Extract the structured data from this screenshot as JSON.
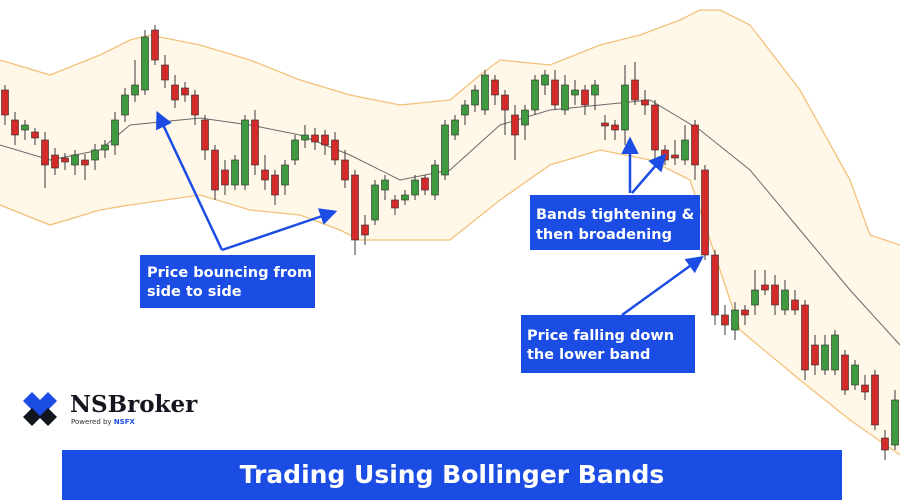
{
  "chart_data": {
    "type": "candlestick",
    "title": "Trading Using Bollinger Bands",
    "ylim": [
      0,
      500
    ],
    "up_color": "#3f9a3f",
    "down_color": "#d42a2a",
    "open": [
      410,
      380,
      370,
      368,
      360,
      345,
      342,
      335,
      340,
      340,
      350,
      355,
      385,
      405,
      410,
      470,
      435,
      415,
      412,
      405,
      380,
      350,
      330,
      315,
      315,
      380,
      330,
      325,
      315,
      340,
      360,
      365,
      365,
      360,
      340,
      325,
      275,
      280,
      310,
      300,
      300,
      305,
      322,
      305,
      325,
      365,
      385,
      395,
      390,
      420,
      405,
      385,
      375,
      390,
      415,
      420,
      390,
      405,
      410,
      405,
      377,
      375,
      370,
      420,
      400,
      395,
      350,
      345,
      340,
      375,
      330,
      245,
      185,
      170,
      190,
      195,
      215,
      215,
      190,
      200,
      195,
      155,
      130,
      130,
      145,
      115,
      115,
      125,
      62,
      55
    ],
    "high": [
      415,
      388,
      380,
      372,
      368,
      352,
      347,
      350,
      346,
      356,
      360,
      388,
      412,
      440,
      470,
      475,
      445,
      425,
      418,
      410,
      385,
      355,
      340,
      345,
      385,
      390,
      345,
      330,
      340,
      365,
      375,
      372,
      370,
      368,
      350,
      330,
      285,
      320,
      325,
      305,
      310,
      325,
      325,
      340,
      380,
      385,
      400,
      415,
      430,
      425,
      410,
      395,
      395,
      425,
      430,
      430,
      425,
      420,
      415,
      420,
      385,
      380,
      435,
      438,
      410,
      400,
      355,
      360,
      375,
      380,
      335,
      250,
      195,
      198,
      195,
      230,
      230,
      225,
      220,
      210,
      200,
      165,
      165,
      170,
      150,
      140,
      125,
      130,
      70,
      110
    ],
    "low": [
      375,
      355,
      360,
      355,
      312,
      325,
      330,
      325,
      320,
      330,
      342,
      345,
      378,
      398,
      405,
      435,
      412,
      392,
      398,
      375,
      340,
      300,
      305,
      310,
      310,
      325,
      310,
      295,
      305,
      335,
      352,
      350,
      345,
      335,
      312,
      245,
      255,
      275,
      300,
      285,
      295,
      300,
      305,
      300,
      320,
      360,
      375,
      388,
      385,
      395,
      365,
      340,
      360,
      385,
      405,
      390,
      385,
      395,
      385,
      390,
      360,
      360,
      355,
      395,
      385,
      340,
      335,
      335,
      335,
      320,
      240,
      175,
      165,
      160,
      175,
      185,
      205,
      185,
      185,
      185,
      120,
      125,
      125,
      125,
      105,
      110,
      100,
      70,
      40,
      50
    ],
    "close": [
      385,
      365,
      375,
      362,
      335,
      332,
      338,
      345,
      335,
      350,
      355,
      380,
      405,
      415,
      463,
      440,
      420,
      400,
      405,
      385,
      350,
      310,
      315,
      340,
      380,
      335,
      320,
      305,
      335,
      360,
      365,
      358,
      355,
      340,
      320,
      260,
      265,
      315,
      320,
      292,
      305,
      320,
      310,
      335,
      375,
      380,
      395,
      410,
      425,
      405,
      390,
      365,
      390,
      420,
      425,
      395,
      415,
      410,
      395,
      415,
      374,
      370,
      415,
      400,
      395,
      350,
      340,
      342,
      360,
      335,
      245,
      185,
      175,
      190,
      185,
      210,
      210,
      195,
      210,
      190,
      130,
      135,
      155,
      165,
      110,
      135,
      108,
      75,
      50,
      100
    ],
    "band_color": "#f3c27c",
    "band_fill": "#fff7e8",
    "middle_color": "#6b6b6b",
    "bands": {
      "upper": {
        "x": [
          -0.5,
          4.5,
          9.5,
          12.5,
          14.5,
          19.5,
          24.5,
          29.5,
          34.5,
          39.5,
          44.5,
          47.5,
          49.5,
          54.5,
          59.5,
          63.5,
          67.5,
          69.5,
          71.5,
          74.5,
          79.5,
          84.5,
          86.5,
          89.5
        ],
        "values": [
          440,
          425,
          445,
          460,
          465,
          455,
          440,
          420,
          405,
          395,
          400,
          425,
          440,
          435,
          455,
          465,
          480,
          490,
          490,
          475,
          410,
          320,
          265,
          255
        ]
      },
      "middle": {
        "x": [
          -0.5,
          4.5,
          9.5,
          12.5,
          19.5,
          24.5,
          29.5,
          34.5,
          39.5,
          44.5,
          49.5,
          54.5,
          59.5,
          64.5,
          69.5,
          74.5,
          79.5,
          84.5,
          89.5
        ],
        "values": [
          355,
          340,
          350,
          375,
          382,
          375,
          365,
          345,
          320,
          330,
          375,
          390,
          395,
          400,
          370,
          330,
          270,
          210,
          155
        ]
      },
      "lower": {
        "x": [
          -0.5,
          4.5,
          9.5,
          12.5,
          19.5,
          24.5,
          29.5,
          33.5,
          35.5,
          39.5,
          44.5,
          49.5,
          54.5,
          59.5,
          64.5,
          68.5,
          71.5,
          73.5,
          79.5,
          84.5,
          89.5
        ],
        "values": [
          295,
          275,
          290,
          295,
          305,
          290,
          285,
          270,
          260,
          260,
          260,
          300,
          335,
          350,
          340,
          320,
          230,
          170,
          120,
          80,
          45
        ]
      }
    },
    "annotations": [
      {
        "lines": [
          "Price bouncing from",
          "side to side"
        ]
      },
      {
        "lines": [
          "Bands tightening &",
          "then broadening"
        ]
      },
      {
        "lines": [
          "Price falling down",
          "the lower band"
        ]
      }
    ]
  },
  "brand": {
    "name": "NSBroker",
    "tagline": "Powered by",
    "partner": "NSFX"
  }
}
